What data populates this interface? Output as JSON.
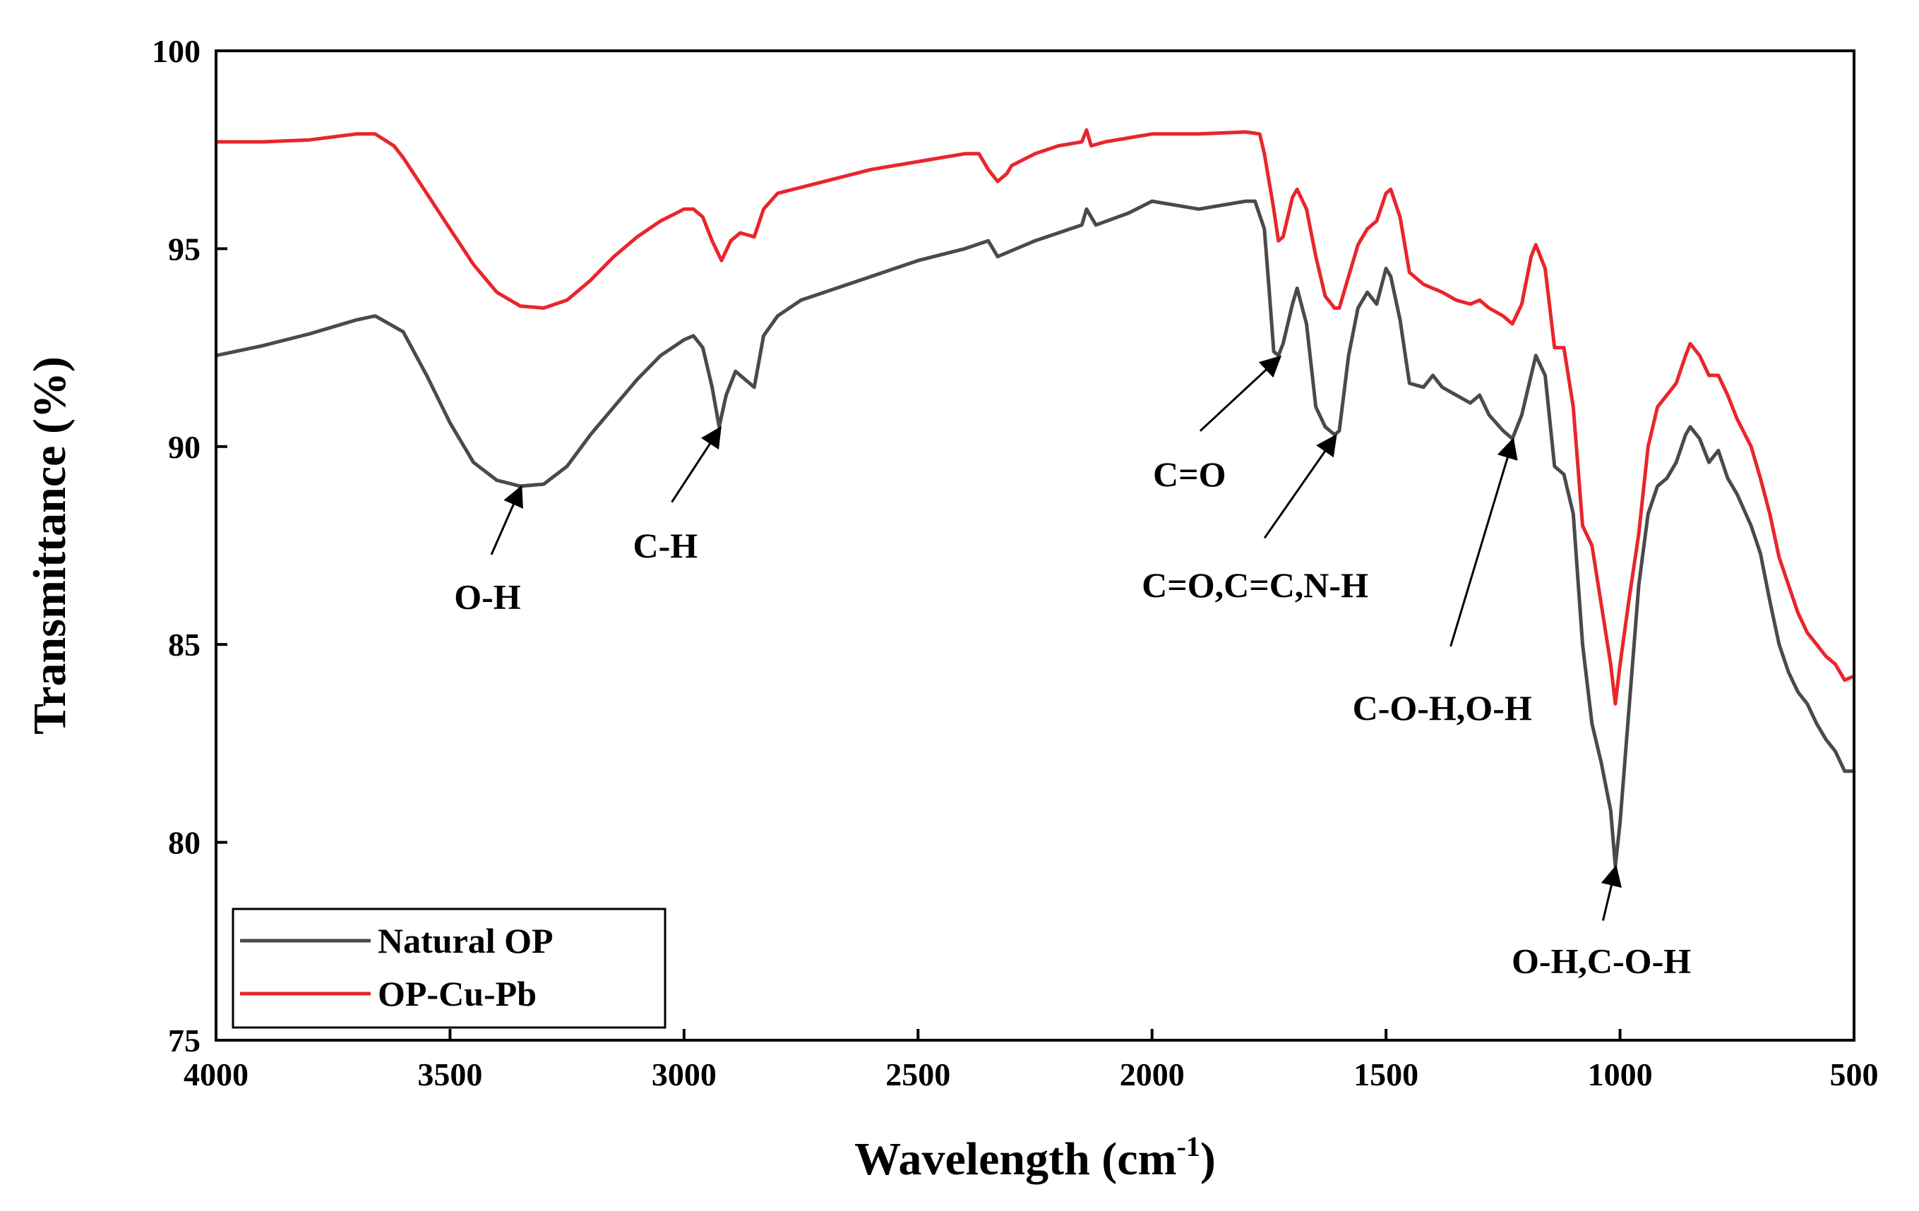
{
  "chart_data": {
    "type": "line",
    "title": "",
    "xlabel": "Wavelength (cm",
    "xlabel_sup": "-1",
    "xlabel_close": ")",
    "ylabel": "Transmittance (%)",
    "xlim": [
      4000,
      500
    ],
    "ylim": [
      75,
      100
    ],
    "x_ticks": [
      4000,
      3500,
      3000,
      2500,
      2000,
      1500,
      1000,
      500
    ],
    "y_ticks": [
      75,
      80,
      85,
      90,
      95,
      100
    ],
    "legend_position": "bottom-left",
    "series": [
      {
        "name": "Natural OP",
        "color": "#4a4a4a",
        "points": [
          [
            4000,
            92.3
          ],
          [
            3900,
            92.55
          ],
          [
            3800,
            92.85
          ],
          [
            3700,
            93.2
          ],
          [
            3660,
            93.3
          ],
          [
            3600,
            92.9
          ],
          [
            3550,
            91.8
          ],
          [
            3500,
            90.6
          ],
          [
            3450,
            89.6
          ],
          [
            3400,
            89.15
          ],
          [
            3350,
            89.0
          ],
          [
            3300,
            89.05
          ],
          [
            3250,
            89.5
          ],
          [
            3200,
            90.3
          ],
          [
            3150,
            91.0
          ],
          [
            3100,
            91.7
          ],
          [
            3050,
            92.3
          ],
          [
            3000,
            92.7
          ],
          [
            2980,
            92.8
          ],
          [
            2960,
            92.5
          ],
          [
            2940,
            91.5
          ],
          [
            2925,
            90.5
          ],
          [
            2910,
            91.3
          ],
          [
            2890,
            91.9
          ],
          [
            2860,
            91.6
          ],
          [
            2850,
            91.5
          ],
          [
            2830,
            92.8
          ],
          [
            2800,
            93.3
          ],
          [
            2750,
            93.7
          ],
          [
            2700,
            93.9
          ],
          [
            2600,
            94.3
          ],
          [
            2500,
            94.7
          ],
          [
            2400,
            95.0
          ],
          [
            2350,
            95.2
          ],
          [
            2330,
            94.8
          ],
          [
            2310,
            94.9
          ],
          [
            2250,
            95.2
          ],
          [
            2150,
            95.6
          ],
          [
            2140,
            96.0
          ],
          [
            2120,
            95.6
          ],
          [
            2050,
            95.9
          ],
          [
            2000,
            96.2
          ],
          [
            1900,
            96.0
          ],
          [
            1800,
            96.2
          ],
          [
            1780,
            96.2
          ],
          [
            1760,
            95.5
          ],
          [
            1750,
            94.0
          ],
          [
            1740,
            92.4
          ],
          [
            1730,
            92.3
          ],
          [
            1720,
            92.6
          ],
          [
            1700,
            93.6
          ],
          [
            1690,
            94.0
          ],
          [
            1670,
            93.1
          ],
          [
            1650,
            91.0
          ],
          [
            1630,
            90.5
          ],
          [
            1610,
            90.3
          ],
          [
            1600,
            90.4
          ],
          [
            1580,
            92.3
          ],
          [
            1560,
            93.5
          ],
          [
            1540,
            93.9
          ],
          [
            1520,
            93.6
          ],
          [
            1500,
            94.5
          ],
          [
            1490,
            94.3
          ],
          [
            1470,
            93.2
          ],
          [
            1450,
            91.6
          ],
          [
            1420,
            91.5
          ],
          [
            1400,
            91.8
          ],
          [
            1380,
            91.5
          ],
          [
            1350,
            91.3
          ],
          [
            1320,
            91.1
          ],
          [
            1300,
            91.3
          ],
          [
            1280,
            90.8
          ],
          [
            1250,
            90.4
          ],
          [
            1230,
            90.2
          ],
          [
            1210,
            90.8
          ],
          [
            1190,
            91.8
          ],
          [
            1180,
            92.3
          ],
          [
            1160,
            91.8
          ],
          [
            1140,
            89.5
          ],
          [
            1120,
            89.3
          ],
          [
            1100,
            88.3
          ],
          [
            1080,
            85.0
          ],
          [
            1060,
            83.0
          ],
          [
            1040,
            82.0
          ],
          [
            1020,
            80.8
          ],
          [
            1010,
            79.4
          ],
          [
            1000,
            80.5
          ],
          [
            980,
            83.5
          ],
          [
            960,
            86.5
          ],
          [
            940,
            88.3
          ],
          [
            920,
            89.0
          ],
          [
            900,
            89.2
          ],
          [
            880,
            89.6
          ],
          [
            860,
            90.3
          ],
          [
            850,
            90.5
          ],
          [
            830,
            90.2
          ],
          [
            810,
            89.6
          ],
          [
            790,
            89.9
          ],
          [
            770,
            89.2
          ],
          [
            750,
            88.8
          ],
          [
            720,
            88.0
          ],
          [
            700,
            87.3
          ],
          [
            680,
            86.1
          ],
          [
            660,
            85.0
          ],
          [
            640,
            84.3
          ],
          [
            620,
            83.8
          ],
          [
            600,
            83.5
          ],
          [
            580,
            83.0
          ],
          [
            560,
            82.6
          ],
          [
            540,
            82.3
          ],
          [
            520,
            81.8
          ],
          [
            500,
            81.8
          ]
        ]
      },
      {
        "name": "OP-Cu-Pb",
        "color": "#e8262c",
        "points": [
          [
            4000,
            97.7
          ],
          [
            3900,
            97.7
          ],
          [
            3800,
            97.75
          ],
          [
            3700,
            97.9
          ],
          [
            3660,
            97.9
          ],
          [
            3620,
            97.6
          ],
          [
            3600,
            97.3
          ],
          [
            3550,
            96.4
          ],
          [
            3500,
            95.5
          ],
          [
            3450,
            94.6
          ],
          [
            3400,
            93.9
          ],
          [
            3350,
            93.55
          ],
          [
            3300,
            93.5
          ],
          [
            3250,
            93.7
          ],
          [
            3200,
            94.2
          ],
          [
            3150,
            94.8
          ],
          [
            3100,
            95.3
          ],
          [
            3050,
            95.7
          ],
          [
            3000,
            96.0
          ],
          [
            2980,
            96.0
          ],
          [
            2960,
            95.8
          ],
          [
            2940,
            95.2
          ],
          [
            2920,
            94.7
          ],
          [
            2900,
            95.2
          ],
          [
            2880,
            95.4
          ],
          [
            2850,
            95.3
          ],
          [
            2830,
            96.0
          ],
          [
            2800,
            96.4
          ],
          [
            2700,
            96.7
          ],
          [
            2600,
            97.0
          ],
          [
            2500,
            97.2
          ],
          [
            2400,
            97.4
          ],
          [
            2370,
            97.4
          ],
          [
            2350,
            97.0
          ],
          [
            2330,
            96.7
          ],
          [
            2310,
            96.9
          ],
          [
            2300,
            97.1
          ],
          [
            2250,
            97.4
          ],
          [
            2200,
            97.6
          ],
          [
            2150,
            97.7
          ],
          [
            2140,
            98.0
          ],
          [
            2130,
            97.6
          ],
          [
            2100,
            97.7
          ],
          [
            2050,
            97.8
          ],
          [
            2000,
            97.9
          ],
          [
            1900,
            97.9
          ],
          [
            1800,
            97.95
          ],
          [
            1770,
            97.9
          ],
          [
            1760,
            97.4
          ],
          [
            1740,
            96.0
          ],
          [
            1730,
            95.2
          ],
          [
            1720,
            95.3
          ],
          [
            1700,
            96.3
          ],
          [
            1690,
            96.5
          ],
          [
            1670,
            96.0
          ],
          [
            1650,
            94.8
          ],
          [
            1630,
            93.8
          ],
          [
            1610,
            93.5
          ],
          [
            1600,
            93.5
          ],
          [
            1580,
            94.3
          ],
          [
            1560,
            95.1
          ],
          [
            1540,
            95.5
          ],
          [
            1520,
            95.7
          ],
          [
            1500,
            96.4
          ],
          [
            1490,
            96.5
          ],
          [
            1470,
            95.8
          ],
          [
            1450,
            94.4
          ],
          [
            1420,
            94.1
          ],
          [
            1400,
            94.0
          ],
          [
            1380,
            93.9
          ],
          [
            1350,
            93.7
          ],
          [
            1320,
            93.6
          ],
          [
            1300,
            93.7
          ],
          [
            1280,
            93.5
          ],
          [
            1250,
            93.3
          ],
          [
            1230,
            93.1
          ],
          [
            1210,
            93.6
          ],
          [
            1190,
            94.8
          ],
          [
            1180,
            95.1
          ],
          [
            1160,
            94.5
          ],
          [
            1140,
            92.5
          ],
          [
            1120,
            92.5
          ],
          [
            1100,
            91.0
          ],
          [
            1080,
            88.0
          ],
          [
            1060,
            87.5
          ],
          [
            1040,
            86.0
          ],
          [
            1020,
            84.5
          ],
          [
            1010,
            83.5
          ],
          [
            1000,
            84.5
          ],
          [
            980,
            86.2
          ],
          [
            960,
            87.8
          ],
          [
            940,
            90.0
          ],
          [
            920,
            91.0
          ],
          [
            900,
            91.3
          ],
          [
            880,
            91.6
          ],
          [
            860,
            92.3
          ],
          [
            850,
            92.6
          ],
          [
            830,
            92.3
          ],
          [
            810,
            91.8
          ],
          [
            790,
            91.8
          ],
          [
            770,
            91.3
          ],
          [
            750,
            90.7
          ],
          [
            720,
            90.0
          ],
          [
            700,
            89.2
          ],
          [
            680,
            88.3
          ],
          [
            660,
            87.2
          ],
          [
            640,
            86.5
          ],
          [
            620,
            85.8
          ],
          [
            600,
            85.3
          ],
          [
            580,
            85.0
          ],
          [
            560,
            84.7
          ],
          [
            540,
            84.5
          ],
          [
            520,
            84.1
          ],
          [
            500,
            84.2
          ]
        ]
      }
    ],
    "annotations": [
      {
        "text": "O-H",
        "tip": [
          3350,
          89.0
        ],
        "label": [
          3420,
          85.9
        ]
      },
      {
        "text": "C-H",
        "tip": [
          2925,
          90.5
        ],
        "label": [
          3040,
          87.2
        ]
      },
      {
        "text": "C=O",
        "tip": [
          1730,
          92.3
        ],
        "label": [
          1920,
          89.0
        ]
      },
      {
        "text": "C=O,C=C,N-H",
        "tip": [
          1610,
          90.3
        ],
        "label": [
          1780,
          86.2
        ]
      },
      {
        "text": "C-O-H,O-H",
        "tip": [
          1230,
          90.2
        ],
        "label": [
          1380,
          83.1
        ]
      },
      {
        "text": "O-H,C-O-H",
        "tip": [
          1010,
          79.4
        ],
        "label": [
          1040,
          76.7
        ]
      }
    ]
  }
}
